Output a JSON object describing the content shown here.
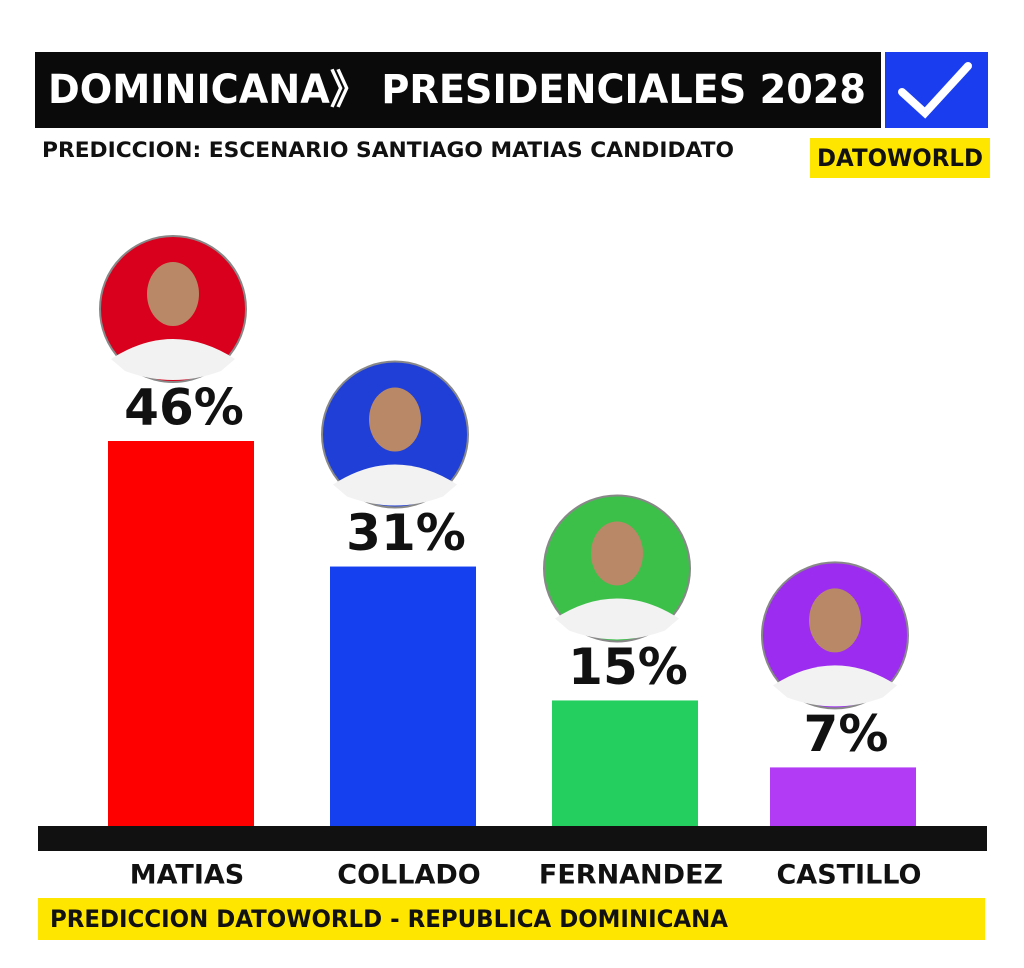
{
  "chart_data": {
    "type": "bar",
    "title": "DOMINICANA》 PRESIDENCIALES 2028",
    "subtitle": "PREDICCION: ESCENARIO SANTIAGO MATIAS CANDIDATO",
    "brand": "DATOWORLD",
    "footer": "PREDICCION DATOWORLD - REPUBLICA DOMINICANA",
    "categories": [
      "MATIAS",
      "COLLADO",
      "FERNANDEZ",
      "CASTILLO"
    ],
    "values": [
      46,
      31,
      15,
      7
    ],
    "value_labels": [
      "46%",
      "31%",
      "15%",
      "7%"
    ],
    "colors": [
      "#ff0000",
      "#1440f0",
      "#25cf5f",
      "#b23cf5"
    ]
  }
}
